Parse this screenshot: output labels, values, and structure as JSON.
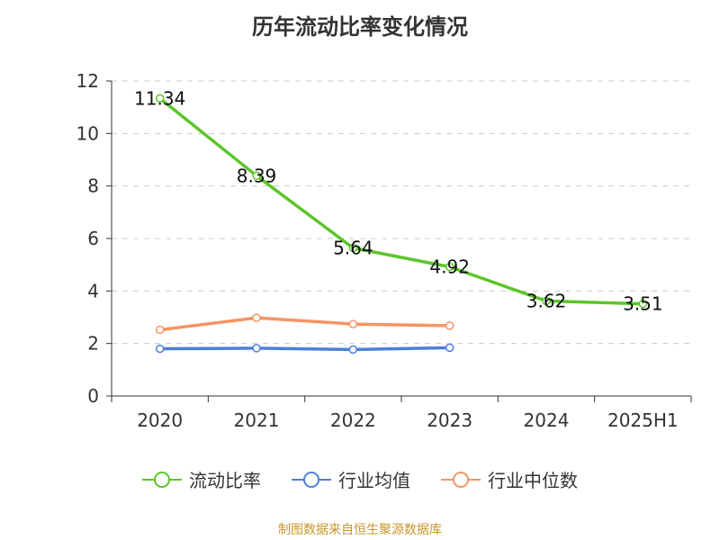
{
  "chart_data": {
    "type": "line",
    "title": "历年流动比率变化情况",
    "categories": [
      "2020",
      "2021",
      "2022",
      "2023",
      "2024",
      "2025H1"
    ],
    "ylim": [
      0,
      12
    ],
    "yticks": [
      "0",
      "2",
      "4",
      "6",
      "8",
      "10",
      "12"
    ],
    "grid": true,
    "legend_position": "bottom",
    "series": [
      {
        "name": "流动比率",
        "color": "#5cc52a",
        "values": [
          11.34,
          8.39,
          5.64,
          4.92,
          3.62,
          3.51
        ],
        "labels": [
          "11.34",
          "8.39",
          "5.64",
          "4.92",
          "3.62",
          "3.51"
        ]
      },
      {
        "name": "行业均值",
        "color": "#4f7fd9",
        "values": [
          1.8,
          1.82,
          1.77,
          1.84,
          null,
          null
        ]
      },
      {
        "name": "行业中位数",
        "color": "#f59463",
        "values": [
          2.52,
          2.98,
          2.74,
          2.68,
          null,
          null
        ]
      }
    ]
  },
  "source": "制图数据来自恒生聚源数据库"
}
